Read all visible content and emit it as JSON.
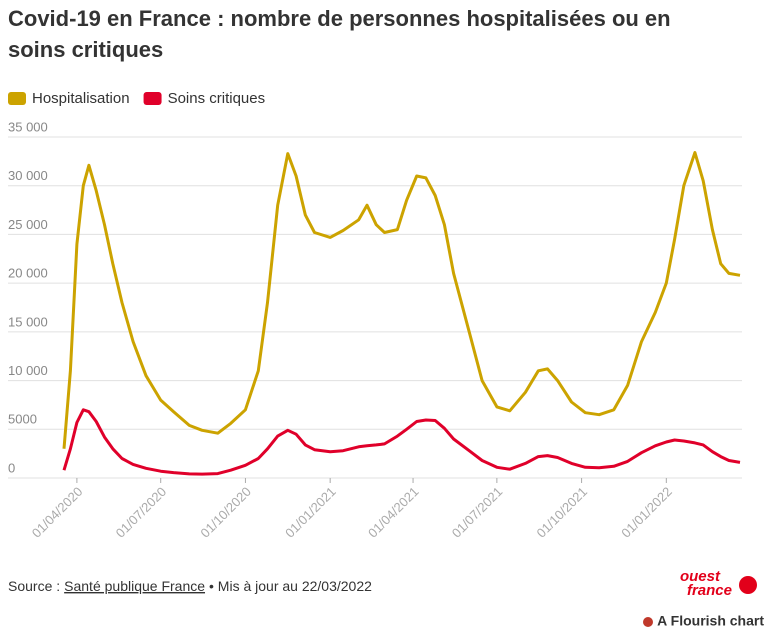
{
  "chart_data": {
    "type": "line",
    "title": "Covid-19 en France : nombre de personnes hospitalisées ou en soins critiques",
    "x": [
      "2020-03-18",
      "2020-03-25",
      "2020-04-01",
      "2020-04-08",
      "2020-04-14",
      "2020-04-22",
      "2020-05-01",
      "2020-05-10",
      "2020-05-20",
      "2020-06-01",
      "2020-06-15",
      "2020-07-01",
      "2020-07-15",
      "2020-08-01",
      "2020-08-15",
      "2020-09-01",
      "2020-09-15",
      "2020-10-01",
      "2020-10-15",
      "2020-10-25",
      "2020-11-05",
      "2020-11-16",
      "2020-11-25",
      "2020-12-05",
      "2020-12-15",
      "2021-01-01",
      "2021-01-15",
      "2021-02-01",
      "2021-02-10",
      "2021-02-20",
      "2021-03-01",
      "2021-03-15",
      "2021-03-25",
      "2021-04-05",
      "2021-04-15",
      "2021-04-25",
      "2021-05-05",
      "2021-05-15",
      "2021-06-01",
      "2021-06-15",
      "2021-07-01",
      "2021-07-15",
      "2021-08-01",
      "2021-08-15",
      "2021-08-25",
      "2021-09-05",
      "2021-09-20",
      "2021-10-05",
      "2021-10-20",
      "2021-11-05",
      "2021-11-20",
      "2021-12-05",
      "2021-12-20",
      "2022-01-01",
      "2022-01-10",
      "2022-01-20",
      "2022-02-01",
      "2022-02-10",
      "2022-02-20",
      "2022-03-01",
      "2022-03-10",
      "2022-03-22"
    ],
    "series": [
      {
        "name": "Hospitalisation",
        "color": "#cca300",
        "values": [
          3000,
          11000,
          24000,
          30000,
          32100,
          29500,
          26000,
          22000,
          18000,
          14000,
          10500,
          8000,
          6800,
          5400,
          4900,
          4600,
          5600,
          7000,
          11000,
          18000,
          28000,
          33300,
          31000,
          27000,
          25200,
          24700,
          25400,
          26500,
          28000,
          26000,
          25200,
          25500,
          28500,
          31000,
          30800,
          29000,
          26000,
          21000,
          15000,
          10000,
          7300,
          6900,
          8800,
          11000,
          11200,
          10000,
          7800,
          6700,
          6500,
          7000,
          9500,
          14000,
          17000,
          20000,
          24500,
          30000,
          33400,
          30500,
          25500,
          22000,
          21000,
          20800
        ]
      },
      {
        "name": "Soins critiques",
        "color": "#e0002a",
        "values": [
          800,
          3000,
          5700,
          7000,
          6800,
          5800,
          4200,
          3000,
          2000,
          1400,
          1000,
          700,
          550,
          420,
          400,
          450,
          800,
          1300,
          2000,
          3000,
          4300,
          4900,
          4500,
          3400,
          2900,
          2700,
          2800,
          3200,
          3300,
          3400,
          3500,
          4300,
          5000,
          5800,
          5950,
          5900,
          5100,
          4000,
          2800,
          1800,
          1100,
          900,
          1500,
          2200,
          2300,
          2100,
          1500,
          1100,
          1050,
          1200,
          1700,
          2600,
          3300,
          3700,
          3900,
          3800,
          3600,
          3400,
          2700,
          2200,
          1800,
          1600
        ]
      }
    ],
    "xlim": [
      "2020-03-18",
      "2022-03-22"
    ],
    "xticks": [
      {
        "value": "2020-04-01",
        "label": "01/04/2020"
      },
      {
        "value": "2020-07-01",
        "label": "01/07/2020"
      },
      {
        "value": "2020-10-01",
        "label": "01/10/2020"
      },
      {
        "value": "2021-01-01",
        "label": "01/01/2021"
      },
      {
        "value": "2021-04-01",
        "label": "01/04/2021"
      },
      {
        "value": "2021-07-01",
        "label": "01/07/2021"
      },
      {
        "value": "2021-10-01",
        "label": "01/10/2021"
      },
      {
        "value": "2022-01-01",
        "label": "01/01/2022"
      }
    ],
    "ylim": [
      0,
      35000
    ],
    "yticks": [
      0,
      5000,
      {
        "value": 10000,
        "label": "10 000"
      },
      {
        "value": 15000,
        "label": "15 000"
      },
      {
        "value": 20000,
        "label": "20 000"
      },
      {
        "value": 25000,
        "label": "25 000"
      },
      {
        "value": 30000,
        "label": "30 000"
      },
      {
        "value": 35000,
        "label": "35 000"
      }
    ],
    "grid": true,
    "source_prefix": "Source :",
    "source_link": "Santé publique France",
    "source_suffix": "• Mis à jour au 22/03/2022",
    "logo_line1": "ouest",
    "logo_line2": "france",
    "credit": "A Flourish chart"
  }
}
